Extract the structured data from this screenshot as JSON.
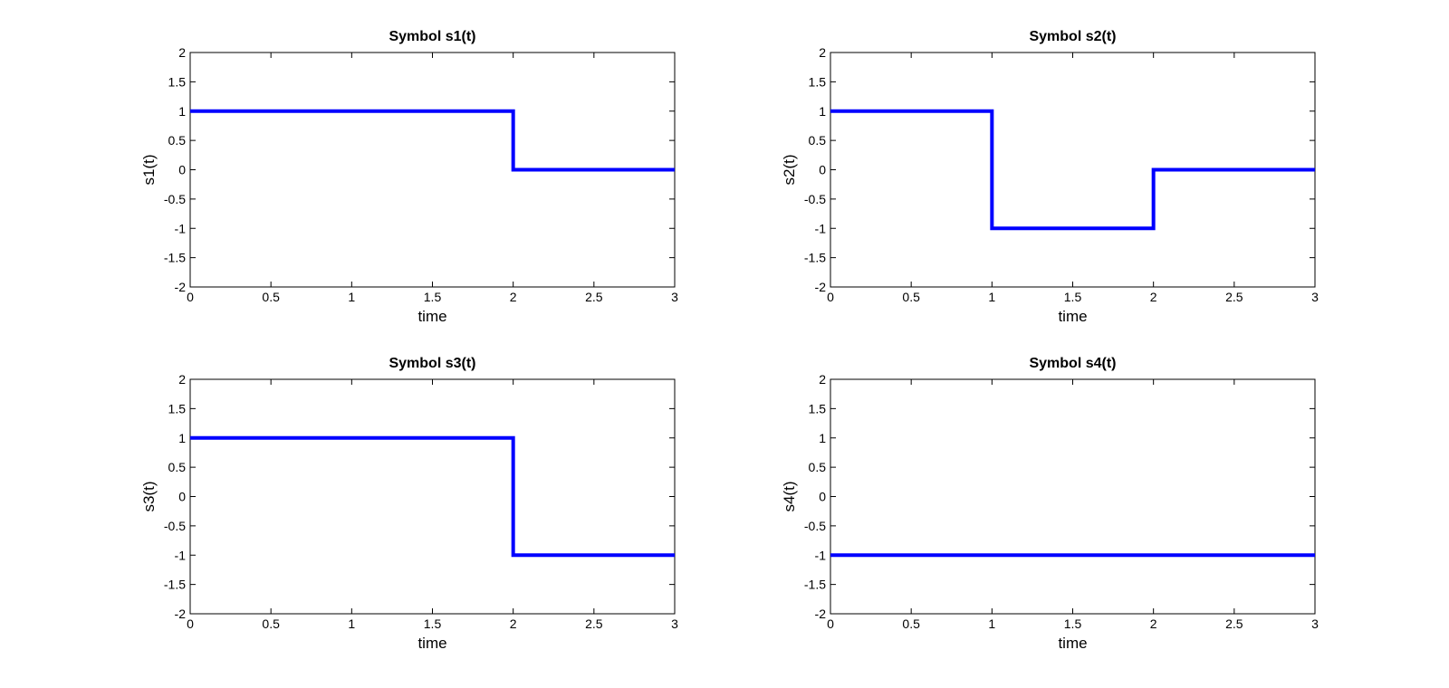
{
  "chart_data": [
    {
      "type": "line",
      "title": "Symbol s1(t)",
      "xlabel": "time",
      "ylabel": "s1(t)",
      "xlim": [
        0,
        3
      ],
      "ylim": [
        -2,
        2
      ],
      "xticks": [
        "0",
        "0.5",
        "1",
        "1.5",
        "2",
        "2.5",
        "3"
      ],
      "yticks": [
        "-2",
        "-1.5",
        "-1",
        "-0.5",
        "0",
        "0.5",
        "1",
        "1.5",
        "2"
      ],
      "grid": false,
      "series": [
        {
          "x": [
            0,
            2,
            2,
            3
          ],
          "y": [
            1,
            1,
            0,
            0
          ],
          "color": "#0000ff"
        }
      ]
    },
    {
      "type": "line",
      "title": "Symbol s2(t)",
      "xlabel": "time",
      "ylabel": "s2(t)",
      "xlim": [
        0,
        3
      ],
      "ylim": [
        -2,
        2
      ],
      "xticks": [
        "0",
        "0.5",
        "1",
        "1.5",
        "2",
        "2.5",
        "3"
      ],
      "yticks": [
        "-2",
        "-1.5",
        "-1",
        "-0.5",
        "0",
        "0.5",
        "1",
        "1.5",
        "2"
      ],
      "grid": false,
      "series": [
        {
          "x": [
            0,
            1,
            1,
            2,
            2,
            3
          ],
          "y": [
            1,
            1,
            -1,
            -1,
            0,
            0
          ],
          "color": "#0000ff"
        }
      ]
    },
    {
      "type": "line",
      "title": "Symbol s3(t)",
      "xlabel": "time",
      "ylabel": "s3(t)",
      "xlim": [
        0,
        3
      ],
      "ylim": [
        -2,
        2
      ],
      "xticks": [
        "0",
        "0.5",
        "1",
        "1.5",
        "2",
        "2.5",
        "3"
      ],
      "yticks": [
        "-2",
        "-1.5",
        "-1",
        "-0.5",
        "0",
        "0.5",
        "1",
        "1.5",
        "2"
      ],
      "grid": false,
      "series": [
        {
          "x": [
            0,
            2,
            2,
            3
          ],
          "y": [
            1,
            1,
            -1,
            -1
          ],
          "color": "#0000ff"
        }
      ]
    },
    {
      "type": "line",
      "title": "Symbol s4(t)",
      "xlabel": "time",
      "ylabel": "s4(t)",
      "xlim": [
        0,
        3
      ],
      "ylim": [
        -2,
        2
      ],
      "xticks": [
        "0",
        "0.5",
        "1",
        "1.5",
        "2",
        "2.5",
        "3"
      ],
      "yticks": [
        "-2",
        "-1.5",
        "-1",
        "-0.5",
        "0",
        "0.5",
        "1",
        "1.5",
        "2"
      ],
      "grid": false,
      "series": [
        {
          "x": [
            0,
            3
          ],
          "y": [
            -1,
            -1
          ],
          "color": "#0000ff"
        }
      ]
    }
  ]
}
